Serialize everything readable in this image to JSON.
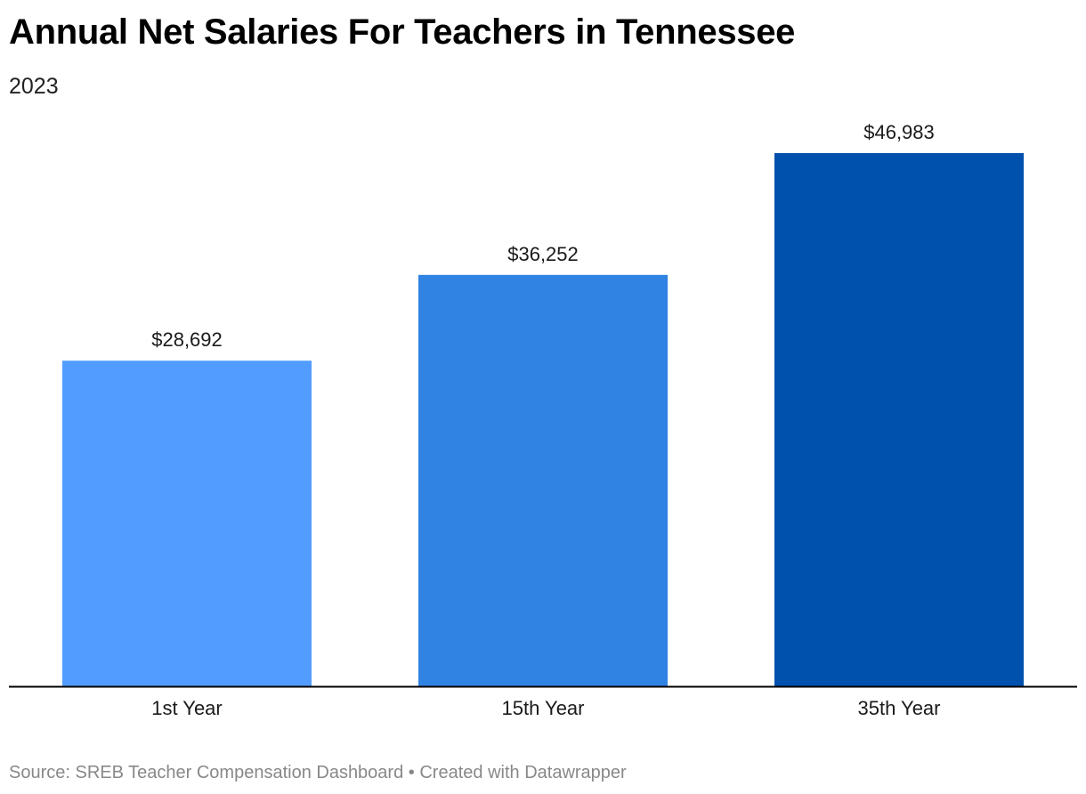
{
  "header": {
    "title": "Annual Net Salaries For Teachers in Tennessee",
    "subtitle": "2023"
  },
  "footer": {
    "source_label": "Source: SREB Teacher Compensation Dashboard",
    "separator": "•",
    "credit": "Created with Datawrapper"
  },
  "chart_data": {
    "type": "bar",
    "title": "Annual Net Salaries For Teachers in Tennessee",
    "subtitle": "2023",
    "xlabel": "",
    "ylabel": "",
    "categories": [
      "1st Year",
      "15th Year",
      "35th Year"
    ],
    "values": [
      28692,
      36252,
      46983
    ],
    "value_labels": [
      "$28,692",
      "$36,252",
      "$46,983"
    ],
    "ylim": [
      0,
      46983
    ],
    "grid": false,
    "legend": "none",
    "colors": [
      "#529cff",
      "#3082e3",
      "#0051ad"
    ],
    "baseline_color": "#000000",
    "label_color": "#1a1a1a"
  }
}
